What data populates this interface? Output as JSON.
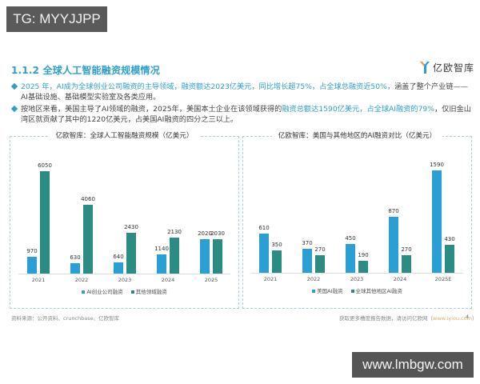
{
  "overlays": {
    "top_left_badge": "TG: MYYJJPP",
    "bottom_right_badge": "www.lmbgw.com"
  },
  "header": {
    "section_title": "1.1.2 全球人工智能融资规模情况",
    "logo_text": "亿欧智库"
  },
  "bullets": [
    {
      "parts": [
        {
          "text": "2025 年，AI成为全球创业公司融资的主导领域，融资额达2023亿美元，同比增长超75%，占全球总融资近50%，",
          "highlight": true
        },
        {
          "text": "涵盖了整个产业链——AI基础设施、基础模型实验室及各类应用。",
          "highlight": false
        }
      ]
    },
    {
      "parts": [
        {
          "text": "按地区来看，美国主导了AI领域的融资，2025年，美国本土企业在该领域获得的",
          "highlight": false
        },
        {
          "text": "融资总额达1590亿美元，占全球AI融资的79%",
          "highlight": true
        },
        {
          "text": "，仅旧金山湾区就贡献了其中的1220亿美元，占美国AI融资的四分之三以上。",
          "highlight": false
        }
      ]
    }
  ],
  "colors": {
    "accent": "#2e9fc8",
    "blue_series": "#2a9fd3",
    "teal_series": "#2a8c82",
    "frame": "#a9cfd6"
  },
  "chart_data": [
    {
      "type": "bar",
      "title": "亿欧智库：全球人工智能融资规模（亿美元）",
      "categories": [
        "2021",
        "2022",
        "2023",
        "2024",
        "2025"
      ],
      "series": [
        {
          "name": "AI创业公司融资",
          "color": "#2a9fd3",
          "values": [
            970,
            630,
            640,
            1140,
            2020
          ]
        },
        {
          "name": "其他领域融资",
          "color": "#2a8c82",
          "values": [
            6050,
            4060,
            2430,
            2130,
            2030
          ]
        }
      ],
      "xlabel": "",
      "ylabel": "",
      "ylim": [
        0,
        6050
      ],
      "grid": false,
      "legend_position": "bottom",
      "data_labels": true
    },
    {
      "type": "bar",
      "title": "亿欧智库：美国与其他地区的AI融资对比（亿美元）",
      "categories": [
        "2021",
        "2022",
        "2023",
        "2024",
        "2025E"
      ],
      "series": [
        {
          "name": "美国AI融资",
          "color": "#2a9fd3",
          "values": [
            610,
            370,
            450,
            870,
            1590
          ]
        },
        {
          "name": "全球其他地区AI融资",
          "color": "#2a8c82",
          "values": [
            350,
            270,
            190,
            270,
            430
          ]
        }
      ],
      "xlabel": "",
      "ylabel": "",
      "ylim": [
        0,
        1590
      ],
      "grid": false,
      "legend_position": "bottom",
      "data_labels": true
    }
  ],
  "footer": {
    "source": "资料来源：公开资料、crunchbase、亿欧智库",
    "more_info": "获取更多槽度报告数据，请访问亿欧网（",
    "link": "www.iyiou.com",
    "close": "）",
    "page_number": "4"
  }
}
